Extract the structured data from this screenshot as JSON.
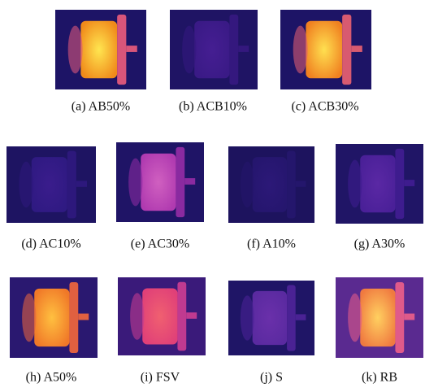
{
  "panels": [
    {
      "caption": "(a) AB50%"
    },
    {
      "caption": "(b) ACB10%"
    },
    {
      "caption": "(c) ACB30%"
    },
    {
      "caption": "(d) AC10%"
    },
    {
      "caption": "(e) AC30%"
    },
    {
      "caption": "(f) A10%"
    },
    {
      "caption": "(g) A30%"
    },
    {
      "caption": "(h) A50%"
    },
    {
      "caption": "(i) FSV"
    },
    {
      "caption": "(j) S"
    },
    {
      "caption": "(k) RB"
    }
  ]
}
